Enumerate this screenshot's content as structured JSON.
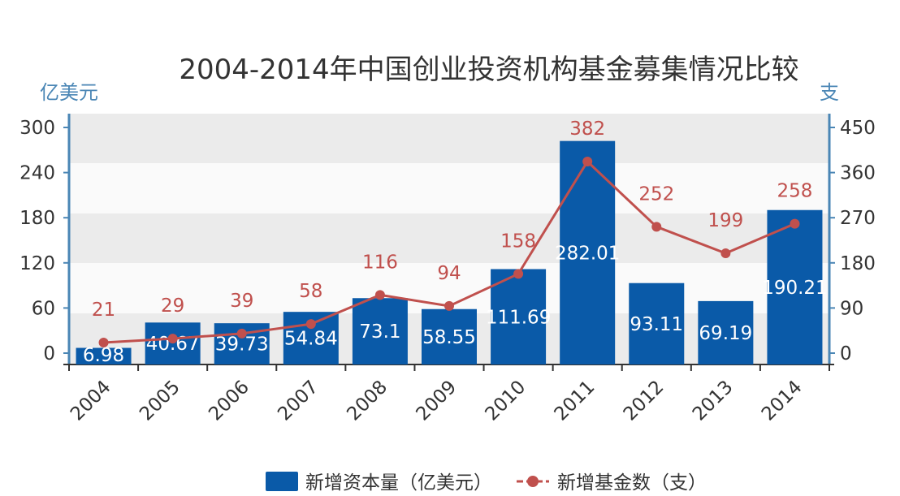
{
  "chart_data": {
    "type": "bar+line",
    "title": "2004-2014年中国创业投资机构基金募集情况比较",
    "categories": [
      "2004",
      "2005",
      "2006",
      "2007",
      "2008",
      "2009",
      "2010",
      "2011",
      "2012",
      "2013",
      "2014"
    ],
    "series": [
      {
        "name": "新增资本量（亿美元）",
        "type": "bar",
        "axis": "left",
        "color": "#0a5aa8",
        "values": [
          6.98,
          40.67,
          39.73,
          54.84,
          73.1,
          58.55,
          111.69,
          282.01,
          93.11,
          69.19,
          190.21
        ]
      },
      {
        "name": "新增基金数（支）",
        "type": "line",
        "axis": "right",
        "color": "#c0504d",
        "values": [
          21,
          29,
          39,
          58,
          116,
          94,
          158,
          382,
          252,
          199,
          258
        ]
      }
    ],
    "left_axis": {
      "unit": "亿美元",
      "ticks": [
        0,
        60,
        120,
        180,
        240,
        300
      ],
      "ylim": [
        0,
        300
      ]
    },
    "right_axis": {
      "unit": "支",
      "ticks": [
        0,
        90,
        180,
        270,
        360,
        450
      ],
      "ylim": [
        0,
        450
      ]
    },
    "legend": {
      "position": "bottom",
      "bar_label": "新增资本量（亿美元）",
      "line_label": "新增基金数（支）"
    },
    "grid": "alternating bands"
  }
}
